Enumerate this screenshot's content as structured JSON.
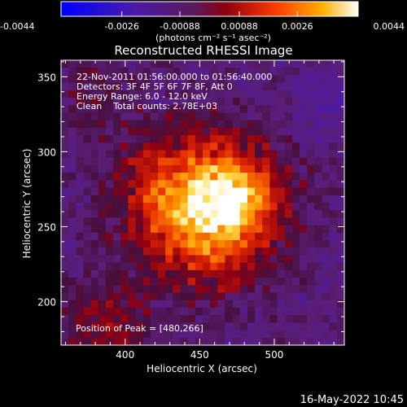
{
  "colorbar": {
    "ticks": [
      "-0.0044",
      "-0.0026",
      "-0.00088",
      "0.00088",
      "0.0026",
      "0.0044"
    ],
    "units": "(photons cm⁻² s⁻¹ asec⁻²)",
    "range": [
      -0.0044,
      0.0044
    ]
  },
  "chart_data": {
    "type": "heatmap",
    "title": "Reconstructed RHESSI Image",
    "xlabel": "Heliocentric X (arcsec)",
    "ylabel": "Heliocentric Y (arcsec)",
    "xlim": [
      357,
      547
    ],
    "ylim": [
      171,
      361
    ],
    "xticks": [
      400,
      450,
      500
    ],
    "yticks": [
      200,
      250,
      300,
      350
    ],
    "grid": false,
    "peak": [
      480,
      266
    ],
    "annotations": [
      "22-Nov-2011 01:56:00.000 to 01:56:40.000",
      "Detectors: 3F 4F 5F 6F 7F 8F, Att 0",
      "Energy Range: 6.0 - 12.0 keV",
      "Clean    Total counts: 2.78E+03"
    ],
    "peak_label": "Position of Peak = [480,266]"
  },
  "footer": {
    "date": "16-May-2022 10:45"
  }
}
